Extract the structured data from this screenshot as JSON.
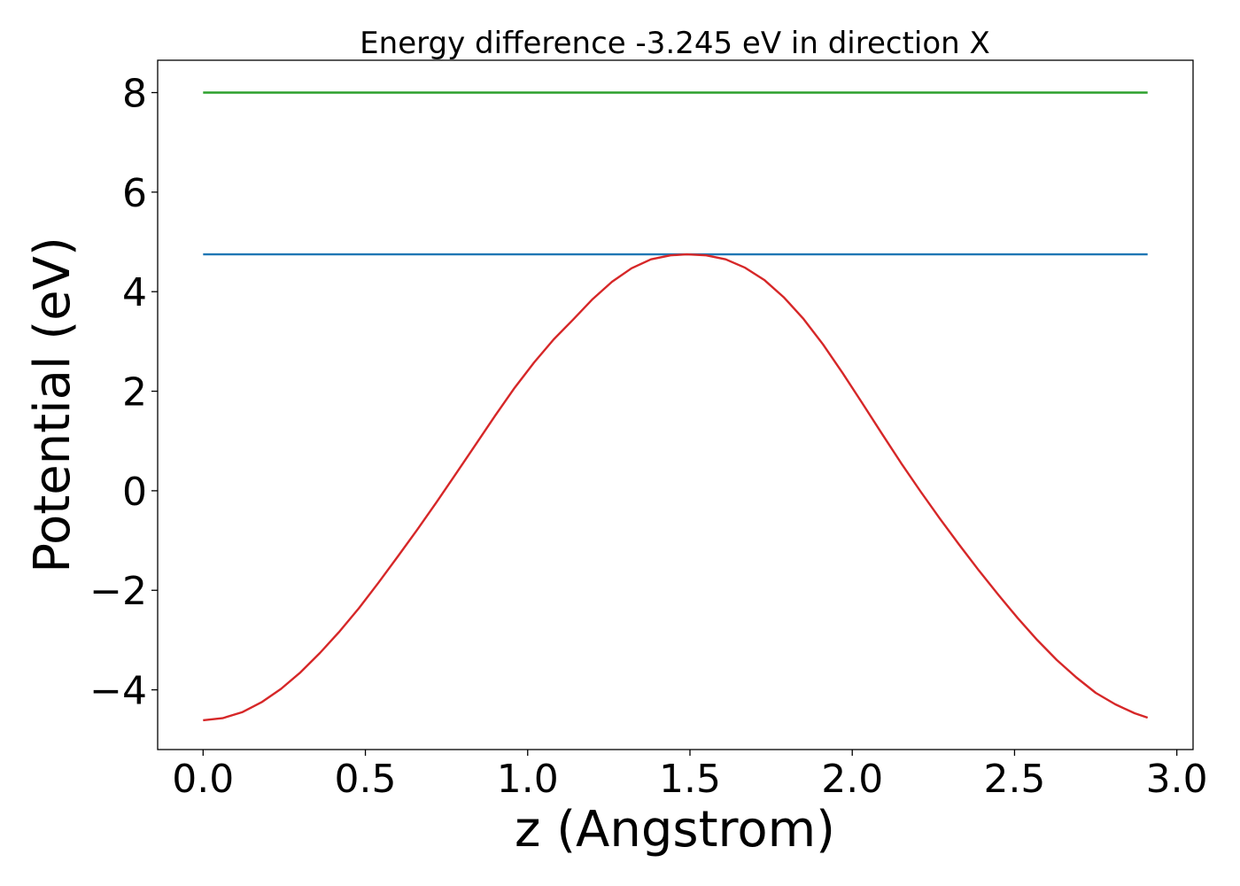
{
  "chart_data": {
    "type": "line",
    "title": "Energy difference -3.245 eV in direction X",
    "xlabel": "z (Angstrom)",
    "ylabel": "Potential (eV)",
    "xlim": [
      -0.14,
      3.05
    ],
    "ylim": [
      -5.2,
      8.65
    ],
    "xticks": [
      0.0,
      0.5,
      1.0,
      1.5,
      2.0,
      2.5,
      3.0
    ],
    "xtick_labels": [
      "0.0",
      "0.5",
      "1.0",
      "1.5",
      "2.0",
      "2.5",
      "3.0"
    ],
    "yticks": [
      -4,
      -2,
      0,
      2,
      4,
      6,
      8
    ],
    "ytick_labels": [
      "−4",
      "−2",
      "0",
      "2",
      "4",
      "6",
      "8"
    ],
    "grid": false,
    "legend": "none",
    "series": [
      {
        "color": "#2ca02c",
        "x": [
          0.0,
          2.91
        ],
        "y": [
          8.0,
          8.0
        ]
      },
      {
        "color": "#1f77b4",
        "x": [
          0.0,
          2.91
        ],
        "y": [
          4.75,
          4.75
        ]
      },
      {
        "color": "#d62728",
        "x": [
          0.0,
          0.06,
          0.12,
          0.18,
          0.24,
          0.3,
          0.36,
          0.42,
          0.48,
          0.54,
          0.6,
          0.66,
          0.72,
          0.78,
          0.84,
          0.9,
          0.96,
          1.02,
          1.08,
          1.14,
          1.2,
          1.26,
          1.32,
          1.38,
          1.44,
          1.49,
          1.55,
          1.61,
          1.67,
          1.73,
          1.79,
          1.85,
          1.91,
          1.97,
          2.03,
          2.09,
          2.15,
          2.21,
          2.27,
          2.33,
          2.39,
          2.45,
          2.51,
          2.57,
          2.63,
          2.69,
          2.75,
          2.81,
          2.87,
          2.91
        ],
        "y": [
          -4.61,
          -4.57,
          -4.45,
          -4.25,
          -3.98,
          -3.65,
          -3.26,
          -2.83,
          -2.36,
          -1.85,
          -1.32,
          -0.78,
          -0.22,
          0.35,
          0.93,
          1.51,
          2.07,
          2.58,
          3.04,
          3.44,
          3.85,
          4.2,
          4.47,
          4.65,
          4.73,
          4.75,
          4.73,
          4.65,
          4.48,
          4.23,
          3.88,
          3.45,
          2.94,
          2.37,
          1.77,
          1.16,
          0.56,
          -0.01,
          -0.56,
          -1.09,
          -1.6,
          -2.09,
          -2.56,
          -3.0,
          -3.4,
          -3.75,
          -4.06,
          -4.29,
          -4.47,
          -4.56
        ]
      }
    ]
  }
}
